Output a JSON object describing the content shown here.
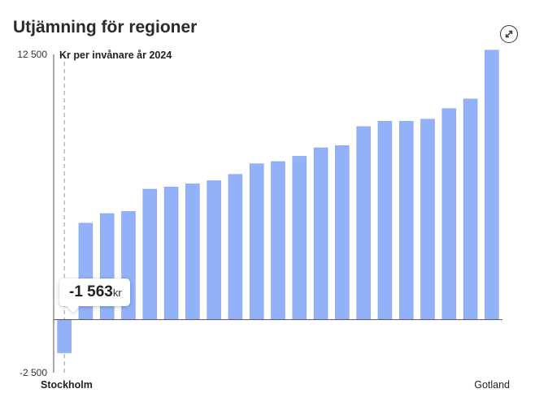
{
  "header": {
    "title": "Utjämning för regioner",
    "expand_icon": "expand-arrows-icon"
  },
  "tooltip": {
    "value": "-1 563",
    "unit": "kr"
  },
  "colors": {
    "bar": "#93b1f8",
    "bar_stroke": "#7f9ef0",
    "axis": "#555555",
    "dashed": "#999999"
  },
  "chart_data": {
    "type": "bar",
    "ylabel": "Kr per invånare år 2024",
    "ylim": [
      -2500,
      12500
    ],
    "ytick_labels": [
      "12 500",
      "-2 500"
    ],
    "ytick_values": [
      12500,
      -2500
    ],
    "categories": [
      "Stockholm",
      "",
      "",
      "",
      "",
      "",
      "",
      "",
      "",
      "",
      "",
      "",
      "",
      "",
      "",
      "",
      "",
      "",
      "",
      "",
      "Gotland"
    ],
    "values": [
      -1563,
      4550,
      5000,
      5100,
      6150,
      6250,
      6400,
      6550,
      6850,
      7350,
      7450,
      7700,
      8100,
      8200,
      9100,
      9350,
      9350,
      9450,
      9950,
      10400,
      12700
    ],
    "highlight_index": 0,
    "grid": false,
    "legend": "none"
  }
}
